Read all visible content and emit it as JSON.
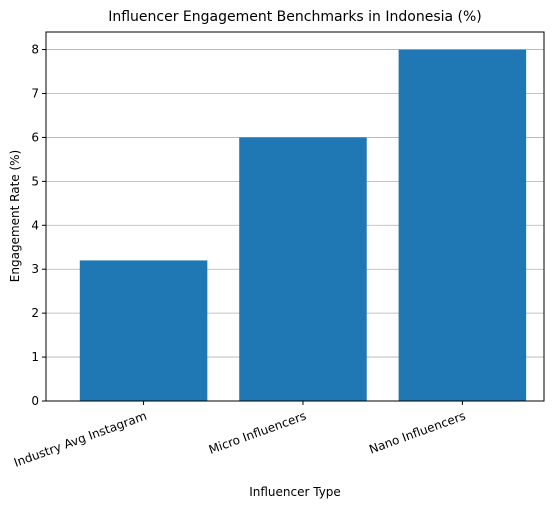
{
  "chart_data": {
    "type": "bar",
    "title": "Influencer Engagement Benchmarks in Indonesia (%)",
    "xlabel": "Influencer Type",
    "ylabel": "Engagement Rate (%)",
    "categories": [
      "Industry Avg Instagram",
      "Micro Influencers",
      "Nano Influencers"
    ],
    "values": [
      3.2,
      6,
      8
    ],
    "ylim": [
      0,
      8.4
    ],
    "yticks": [
      0,
      1,
      2,
      3,
      4,
      5,
      6,
      7,
      8
    ],
    "grid": "y",
    "bar_color": "#1f77b4",
    "legend": "none"
  }
}
